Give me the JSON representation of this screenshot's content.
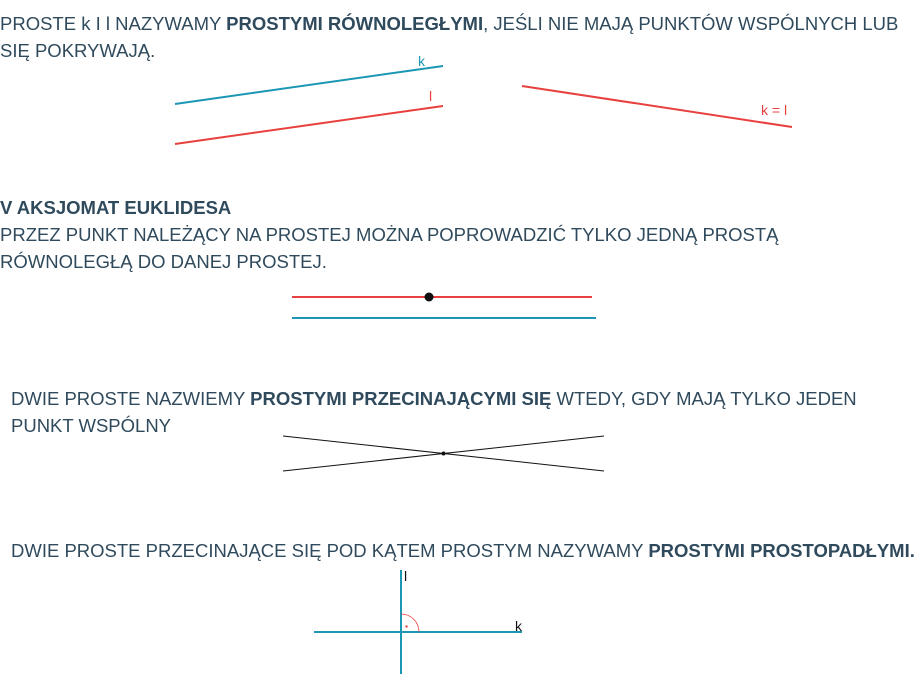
{
  "colors": {
    "text": "#2f4a5c",
    "teal": "#1b97b4",
    "red": "#e8403e",
    "black": "#111111",
    "right_angle_mark": "#e8403e"
  },
  "section1": {
    "text_before": "PROSTE k I l NAZYWAMY ",
    "bold": "PROSTYMI RÓWNOLEGŁYMI",
    "text_after": ", JEŚLI NIE MAJĄ PUNKTÓW WSPÓLNYCH LUB SIĘ POKRYWAJĄ.",
    "label_k": "k",
    "label_l": "l",
    "label_k_eq_l": "k = l"
  },
  "section2": {
    "heading": "V AKSJOMAT EUKLIDESA",
    "text": "PRZEZ PUNKT NALEŻĄCY NA PROSTEJ MOŻNA POPROWADZIĆ TYLKO JEDNĄ PROSTĄ RÓWNOLEGŁĄ DO DANEJ PROSTEJ."
  },
  "section3": {
    "text_before": "DWIE PROSTE NAZWIEMY ",
    "bold": "PROSTYMI PRZECINAJĄCYMI SIĘ",
    "text_after": " WTEDY, GDY MAJĄ TYLKO JEDEN PUNKT WSPÓLNY"
  },
  "section4": {
    "text_before": "DWIE PROSTE PRZECINAJĄCE SIĘ POD KĄTEM PROSTYM NAZYWAMY ",
    "bold": "PROSTYMI PROSTOPADŁYMI.",
    "label_l": "l",
    "label_k": "k"
  }
}
